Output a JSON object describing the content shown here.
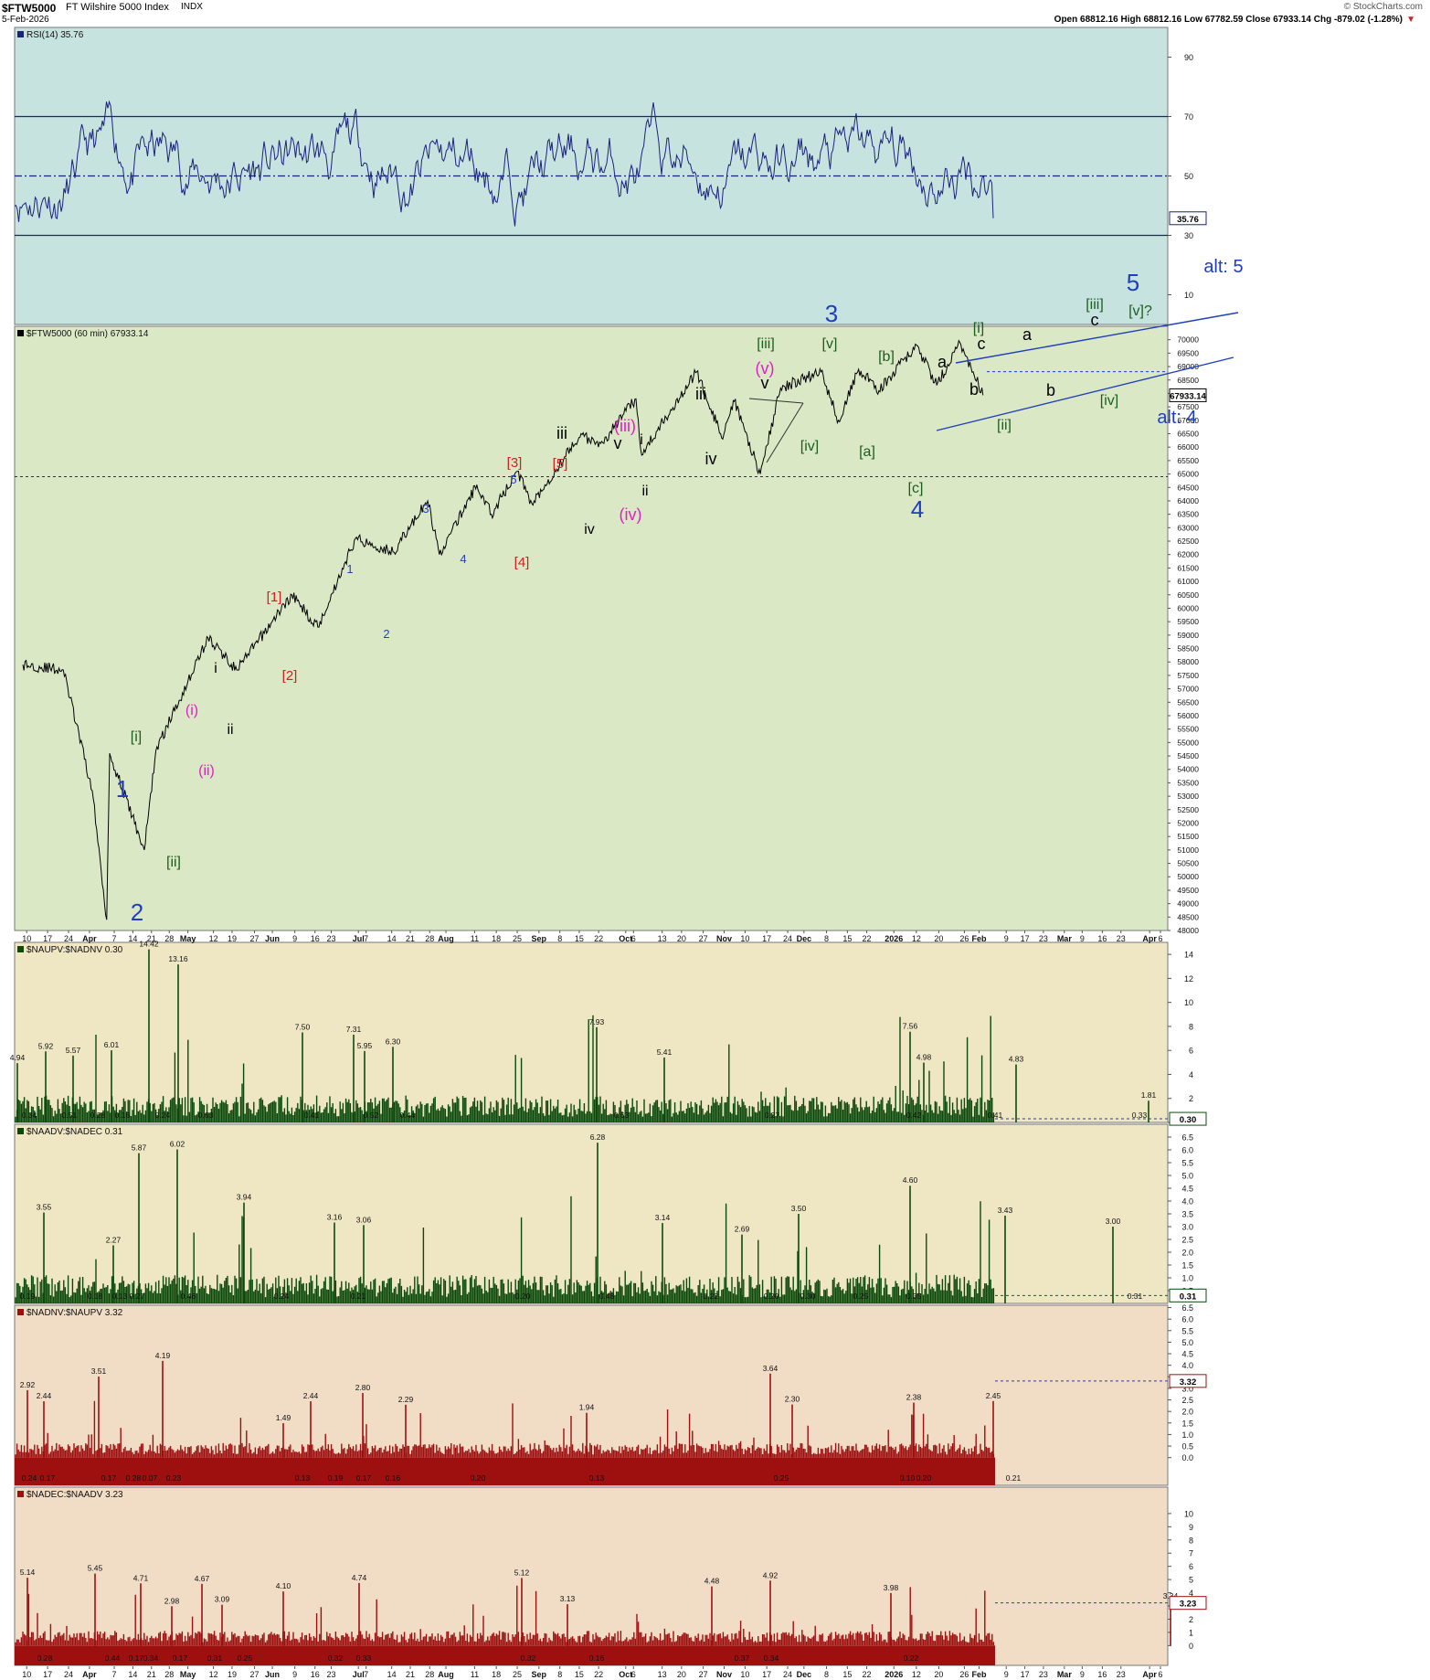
{
  "header": {
    "symbol": "$FTW5000",
    "name": "FT Wilshire 5000 Index",
    "exchange": "INDX",
    "date": "5-Feb-2026",
    "copyright": "© StockCharts.com",
    "ohlc": "Open 68812.16   High 68812.16   Low 67782.59   Close 67933.14   Chg -879.02 (-1.28%)",
    "chg_arrow": "▼"
  },
  "chart_data": [
    {
      "type": "line",
      "panel": "rsi",
      "title": "RSI(14) 35.76",
      "last_value": "35.76",
      "ylim": [
        0,
        100
      ],
      "y_ticks": [
        "90",
        "70",
        "50",
        "30",
        "10"
      ],
      "reference_lines": [
        70,
        50,
        30
      ],
      "colors": {
        "line": "#1a237e",
        "background": "#c6e3df"
      }
    },
    {
      "type": "line",
      "panel": "price",
      "title": "$FTW5000 (60 min) 67933.14",
      "last_value": "67933.14",
      "ylim": [
        48000,
        70500
      ],
      "y_ticks": [
        "70000",
        "69500",
        "69000",
        "68500",
        "68000",
        "67500",
        "67000",
        "66500",
        "66000",
        "65500",
        "65000",
        "64500",
        "64000",
        "63500",
        "63000",
        "62500",
        "62000",
        "61500",
        "61000",
        "60500",
        "60000",
        "59500",
        "59000",
        "58500",
        "58000",
        "57500",
        "57000",
        "56500",
        "56000",
        "55500",
        "55000",
        "54500",
        "54000",
        "53500",
        "53000",
        "52500",
        "52000",
        "51500",
        "51000",
        "50500",
        "50000",
        "49500",
        "49000",
        "48500",
        "48000"
      ],
      "dashed_levels": [
        68812,
        64900
      ],
      "key_points": [
        {
          "date": "2025-03-10",
          "value": 57900
        },
        {
          "date": "2025-03-24",
          "value": 57700
        },
        {
          "date": "2025-04-03",
          "value": 53200
        },
        {
          "date": "2025-04-08",
          "value": 48400
        },
        {
          "date": "2025-04-09",
          "value": 54600
        },
        {
          "date": "2025-04-21",
          "value": 51000
        },
        {
          "date": "2025-04-25",
          "value": 54700
        },
        {
          "date": "2025-05-13",
          "value": 58900
        },
        {
          "date": "2025-05-23",
          "value": 57700
        },
        {
          "date": "2025-06-11",
          "value": 60500
        },
        {
          "date": "2025-06-20",
          "value": 59300
        },
        {
          "date": "2025-07-03",
          "value": 62600
        },
        {
          "date": "2025-07-16",
          "value": 62100
        },
        {
          "date": "2025-07-28",
          "value": 64000
        },
        {
          "date": "2025-08-01",
          "value": 62000
        },
        {
          "date": "2025-08-14",
          "value": 64600
        },
        {
          "date": "2025-08-19",
          "value": 63500
        },
        {
          "date": "2025-08-28",
          "value": 65100
        },
        {
          "date": "2025-09-02",
          "value": 63900
        },
        {
          "date": "2025-09-19",
          "value": 66500
        },
        {
          "date": "2025-09-25",
          "value": 66000
        },
        {
          "date": "2025-10-08",
          "value": 67800
        },
        {
          "date": "2025-10-10",
          "value": 65700
        },
        {
          "date": "2025-10-20",
          "value": 67400
        },
        {
          "date": "2025-10-29",
          "value": 68800
        },
        {
          "date": "2025-11-07",
          "value": 66300
        },
        {
          "date": "2025-11-11",
          "value": 67700
        },
        {
          "date": "2025-11-20",
          "value": 65000
        },
        {
          "date": "2025-11-27",
          "value": 68200
        },
        {
          "date": "2025-12-11",
          "value": 68800
        },
        {
          "date": "2025-12-17",
          "value": 67000
        },
        {
          "date": "2025-12-24",
          "value": 68900
        },
        {
          "date": "2025-12-31",
          "value": 68100
        },
        {
          "date": "2026-01-13",
          "value": 69800
        },
        {
          "date": "2026-01-20",
          "value": 68300
        },
        {
          "date": "2026-01-28",
          "value": 69900
        },
        {
          "date": "2026-02-05",
          "value": 67933
        }
      ],
      "wave_labels": [
        {
          "text": "1",
          "color": "#1f3fbf"
        },
        {
          "text": "2",
          "color": "#1f3fbf"
        },
        {
          "text": "[i]",
          "color": "#1b5e20"
        },
        {
          "text": "[ii]",
          "color": "#1b5e20"
        },
        {
          "text": "(i)",
          "color": "#e020c8"
        },
        {
          "text": "(ii)",
          "color": "#e020c8"
        },
        {
          "text": "i",
          "color": "#000000"
        },
        {
          "text": "ii",
          "color": "#000000"
        },
        {
          "text": "[1]",
          "color": "#d02020"
        },
        {
          "text": "[2]",
          "color": "#d02020"
        },
        {
          "text": "1",
          "color": "#2a3fbf"
        },
        {
          "text": "2",
          "color": "#2a3fbf"
        },
        {
          "text": "3",
          "color": "#2a3fbf"
        },
        {
          "text": "4",
          "color": "#2a3fbf"
        },
        {
          "text": "5",
          "color": "#2a3fbf"
        },
        {
          "text": "[3]",
          "color": "#d02020"
        },
        {
          "text": "[4]",
          "color": "#d02020"
        },
        {
          "text": "[5]",
          "color": "#d02020"
        },
        {
          "text": "iii",
          "color": "#000000"
        },
        {
          "text": "iv",
          "color": "#000000"
        },
        {
          "text": "(iii)",
          "color": "#e020c8"
        },
        {
          "text": "(iv)",
          "color": "#e020c8"
        },
        {
          "text": "v",
          "color": "#000000"
        },
        {
          "text": "i",
          "color": "#000000"
        },
        {
          "text": "ii",
          "color": "#000000"
        },
        {
          "text": "iii",
          "color": "#000000"
        },
        {
          "text": "iv",
          "color": "#000000"
        },
        {
          "text": "(v)",
          "color": "#e020c8"
        },
        {
          "text": "v",
          "color": "#000000"
        },
        {
          "text": "[iii]",
          "color": "#1b5e20"
        },
        {
          "text": "[iv]",
          "color": "#1b5e20"
        },
        {
          "text": "[v]",
          "color": "#1b5e20"
        },
        {
          "text": "3",
          "color": "#1f3fbf"
        },
        {
          "text": "[a]",
          "color": "#1b5e20"
        },
        {
          "text": "[b]",
          "color": "#1b5e20"
        },
        {
          "text": "[c]",
          "color": "#1b5e20"
        },
        {
          "text": "4",
          "color": "#1f3fbf"
        },
        {
          "text": "a",
          "color": "#000000"
        },
        {
          "text": "b",
          "color": "#000000"
        },
        {
          "text": "c",
          "color": "#000000"
        },
        {
          "text": "[i]",
          "color": "#1b5e20"
        },
        {
          "text": "[ii]",
          "color": "#1b5e20"
        },
        {
          "text": "a",
          "color": "#000000"
        },
        {
          "text": "b",
          "color": "#000000"
        },
        {
          "text": "c",
          "color": "#000000"
        },
        {
          "text": "[iii]",
          "color": "#1b5e20"
        },
        {
          "text": "[iv]",
          "color": "#1b5e20"
        },
        {
          "text": "[v]?",
          "color": "#1b5e20"
        },
        {
          "text": "5",
          "color": "#1f3fbf"
        },
        {
          "text": "alt: 5",
          "color": "#1f3fbf"
        },
        {
          "text": "alt: 4",
          "color": "#1f3fbf"
        }
      ],
      "colors": {
        "line": "#000000",
        "background": "#dbe8c6",
        "annotation": "#1f3fbf"
      }
    },
    {
      "type": "bar",
      "panel": "ratio1",
      "title": "$NAUPV:$NADNV 0.30",
      "last_value": "0.30",
      "ylim": [
        0,
        15
      ],
      "y_ticks": [
        "14",
        "12",
        "10",
        "8",
        "6",
        "4",
        "2",
        "0"
      ],
      "peak_labels": [
        "4.94",
        "5.92",
        "5.57",
        "6.01",
        "14.42",
        "13.16",
        "7.50",
        "7.31",
        "5.95",
        "6.30",
        "7.93",
        "5.41",
        "7.56",
        "4.98",
        "4.83",
        "1.81"
      ],
      "trough_labels": [
        "0.34",
        "0.51",
        "0.28",
        "0.16",
        "0.24",
        "0.63",
        "0.41",
        "0.52",
        "0.44",
        "0.63",
        "0.27",
        "0.42",
        "0.41",
        "0.33"
      ],
      "colors": {
        "bar": "#0c4a0c",
        "background": "#efe6c3"
      }
    },
    {
      "type": "bar",
      "panel": "ratio2",
      "title": "$NAADV:$NADEC 0.31",
      "last_value": "0.31",
      "ylim": [
        0,
        7
      ],
      "y_ticks": [
        "6.5",
        "6.0",
        "5.5",
        "5.0",
        "4.5",
        "4.0",
        "3.5",
        "3.0",
        "2.5",
        "2.0",
        "1.5",
        "1.0",
        "0.5"
      ],
      "peak_labels": [
        "3.55",
        "2.27",
        "5.87",
        "6.02",
        "3.94",
        "3.16",
        "3.06",
        "6.28",
        "3.14",
        "2.69",
        "3.50",
        "4.60",
        "3.43",
        "3.00"
      ],
      "trough_labels": [
        "0.19",
        "0.18",
        "0.13",
        "0.27",
        "0.46",
        "0.24",
        "0.21",
        "0.20",
        "0.48",
        "0.22",
        "0.20",
        "0.30",
        "0.25",
        "0.35",
        "0.31"
      ],
      "colors": {
        "bar": "#0c4a0c",
        "background": "#efe6c3"
      }
    },
    {
      "type": "bar",
      "panel": "ratio3",
      "title": "$NADNV:$NAUPV 3.32",
      "last_value": "3.32",
      "ylim": [
        -1.2,
        6.6
      ],
      "y_ticks": [
        "6.5",
        "6.0",
        "5.5",
        "5.0",
        "4.5",
        "4.0",
        "3.5",
        "3.0",
        "2.5",
        "2.0",
        "1.5",
        "1.0",
        "0.5",
        "0.0"
      ],
      "peak_labels": [
        "2.92",
        "2.44",
        "3.51",
        "4.19",
        "1.49",
        "2.44",
        "2.80",
        "2.29",
        "1.94",
        "3.64",
        "2.30",
        "2.38",
        "2.45"
      ],
      "trough_labels": [
        "0.24",
        "0.17",
        "0.17",
        "0.28",
        "0.07",
        "0.23",
        "0.13",
        "0.19",
        "0.17",
        "0.16",
        "0.20",
        "0.13",
        "0.25",
        "0.10",
        "0.20",
        "0.21"
      ],
      "colors": {
        "bar": "#9e0f0f",
        "background": "#f1dcc6"
      }
    },
    {
      "type": "bar",
      "panel": "ratio4",
      "title": "$NADEC:$NAADV 3.23",
      "last_value": "3.23",
      "ylim": [
        -1.5,
        12
      ],
      "y_ticks": [
        "10",
        "9",
        "8",
        "7",
        "6",
        "5",
        "4",
        "3",
        "2",
        "1",
        "0"
      ],
      "peak_labels": [
        "5.14",
        "5.45",
        "4.71",
        "2.98",
        "4.67",
        "3.09",
        "4.10",
        "4.74",
        "5.12",
        "3.13",
        "4.48",
        "4.92",
        "3.98",
        "3.34"
      ],
      "trough_labels": [
        "0.28",
        "0.44",
        "0.17",
        "0.34",
        "0.17",
        "0.31",
        "0.25",
        "0.32",
        "0.33",
        "0.32",
        "0.16",
        "0.37",
        "0.34",
        "0.22"
      ],
      "colors": {
        "bar": "#9e0f0f",
        "background": "#f1dcc6"
      }
    }
  ],
  "x_axis": {
    "labels": [
      "10",
      "17",
      "24",
      "Apr",
      "7",
      "14",
      "21",
      "28",
      "May",
      "12",
      "19",
      "27",
      "Jun",
      "9",
      "16",
      "23",
      "Jul",
      "7",
      "14",
      "21",
      "28",
      "Aug",
      "11",
      "18",
      "25",
      "Sep",
      "8",
      "15",
      "22",
      "Oct",
      "6",
      "13",
      "20",
      "27",
      "Nov",
      "10",
      "17",
      "24",
      "Dec",
      "8",
      "15",
      "22",
      "2026",
      "12",
      "20",
      "26",
      "Feb",
      "9",
      "17",
      "23",
      "Mar",
      "9",
      "16",
      "23",
      "Apr",
      "6"
    ]
  }
}
